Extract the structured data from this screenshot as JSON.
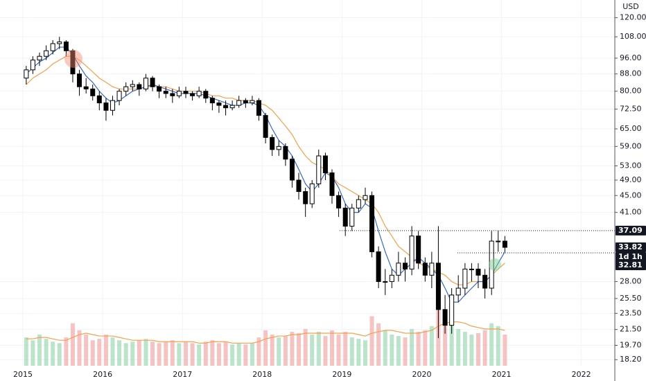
{
  "chart_data": {
    "type": "candlestick",
    "y_unit": "USD",
    "log_scale": true,
    "grid": true,
    "xlim": [
      2014.713,
      2022.42
    ],
    "ylim": [
      17.6,
      132.3
    ],
    "xticks": [
      2015,
      2016,
      2017,
      2018,
      2019,
      2020,
      2021,
      2022
    ],
    "yticks": [
      {
        "value": 120,
        "label": "120.00"
      },
      {
        "value": 108,
        "label": "108.00"
      },
      {
        "value": 96,
        "label": "96.00"
      },
      {
        "value": 88,
        "label": "88.00"
      },
      {
        "value": 80,
        "label": "80.00"
      },
      {
        "value": 72.5,
        "label": "72.50"
      },
      {
        "value": 65,
        "label": "65.00"
      },
      {
        "value": 59,
        "label": "59.00"
      },
      {
        "value": 53,
        "label": "53.00"
      },
      {
        "value": 49,
        "label": "49.00"
      },
      {
        "value": 45,
        "label": "45.00"
      },
      {
        "value": 41,
        "label": "41.00"
      },
      {
        "value": 28,
        "label": "28.00"
      },
      {
        "value": 25.5,
        "label": "25.50"
      },
      {
        "value": 23.5,
        "label": "23.50"
      },
      {
        "value": 21.5,
        "label": "21.50"
      },
      {
        "value": 19.7,
        "label": "19.70"
      },
      {
        "value": 18.2,
        "label": "18.20"
      }
    ],
    "x": [
      2015.042,
      2015.125,
      2015.208,
      2015.292,
      2015.375,
      2015.458,
      2015.542,
      2015.625,
      2015.708,
      2015.792,
      2015.875,
      2015.958,
      2016.042,
      2016.125,
      2016.208,
      2016.292,
      2016.375,
      2016.458,
      2016.542,
      2016.625,
      2016.708,
      2016.792,
      2016.875,
      2016.958,
      2017.042,
      2017.125,
      2017.208,
      2017.292,
      2017.375,
      2017.458,
      2017.542,
      2017.625,
      2017.708,
      2017.792,
      2017.875,
      2017.958,
      2018.042,
      2018.125,
      2018.208,
      2018.292,
      2018.375,
      2018.458,
      2018.542,
      2018.625,
      2018.708,
      2018.792,
      2018.875,
      2018.958,
      2019.042,
      2019.125,
      2019.208,
      2019.292,
      2019.375,
      2019.458,
      2019.542,
      2019.625,
      2019.708,
      2019.792,
      2019.875,
      2019.958,
      2020.042,
      2020.125,
      2020.208,
      2020.292,
      2020.375,
      2020.458,
      2020.542,
      2020.625,
      2020.708,
      2020.792,
      2020.875,
      2020.958,
      2021.042
    ],
    "open": [
      86,
      90,
      95,
      97,
      100,
      104,
      105,
      100,
      88,
      82,
      81,
      78,
      75,
      72,
      76,
      80,
      82,
      83,
      81,
      86,
      82,
      80,
      79,
      78,
      80,
      79,
      78,
      80,
      77,
      75,
      74,
      73,
      74,
      76,
      75,
      76,
      70,
      62,
      58,
      59,
      55,
      49,
      46,
      43,
      48,
      56,
      51,
      45,
      42,
      38,
      42,
      44,
      45,
      33,
      28,
      28,
      29,
      31,
      30,
      36,
      31,
      29,
      31,
      24,
      22,
      26,
      27,
      30,
      30,
      29,
      27,
      35,
      35
    ],
    "high": [
      92,
      97,
      99,
      103,
      106,
      108,
      106,
      101,
      90,
      86,
      83,
      80,
      77,
      78,
      81,
      84,
      85,
      84,
      88,
      87,
      83,
      82,
      81,
      82,
      82,
      80,
      82,
      81,
      78,
      76,
      76,
      76,
      78,
      77,
      78,
      77,
      71,
      63,
      61,
      60,
      56,
      51,
      47,
      49,
      58,
      57,
      52,
      46,
      43,
      43,
      45,
      47,
      46,
      34,
      30,
      30,
      33,
      32,
      38,
      37,
      32,
      33,
      38,
      26,
      27,
      29,
      31,
      31,
      31,
      30,
      37,
      37.09,
      36
    ],
    "low": [
      83,
      88,
      92,
      95,
      98,
      101,
      97,
      84,
      78,
      79,
      76,
      72,
      68,
      70,
      74,
      78,
      80,
      78,
      80,
      80,
      77,
      77,
      75,
      77,
      77,
      76,
      77,
      75,
      72,
      71,
      70,
      72,
      73,
      73,
      74,
      68,
      60,
      56,
      56,
      53,
      47,
      44,
      40,
      42,
      47,
      49,
      43,
      40,
      36,
      37,
      41,
      43,
      32,
      27,
      26,
      27,
      28,
      28,
      29,
      30,
      28,
      27,
      20.5,
      21,
      21,
      25,
      26,
      28,
      27,
      25.5,
      26,
      33,
      33
    ],
    "close": [
      90,
      95,
      97,
      100,
      104,
      105,
      100,
      88,
      82,
      81,
      78,
      75,
      72,
      76,
      80,
      82,
      83,
      81,
      86,
      82,
      80,
      79,
      78,
      80,
      79,
      78,
      80,
      77,
      75,
      74,
      73,
      74,
      76,
      75,
      76,
      70,
      62,
      58,
      59,
      55,
      49,
      46,
      43,
      48,
      56,
      51,
      45,
      42,
      38,
      42,
      44,
      45,
      33,
      28,
      28,
      29,
      31,
      30,
      36,
      31,
      29,
      31,
      24,
      22,
      26,
      27,
      30,
      30,
      29,
      27,
      35,
      35,
      33.82
    ],
    "up_color": "#ffffff",
    "down_color": "#000000",
    "moving_averages": [
      {
        "color": "#f5a04a",
        "values": [
          83,
          86,
          88,
          90,
          93,
          95,
          97,
          97,
          95,
          92,
          89,
          86,
          84,
          82,
          81,
          81,
          81,
          81,
          82,
          82,
          82,
          82,
          81,
          80,
          80,
          80,
          80,
          79,
          78,
          78,
          77,
          77,
          76,
          76,
          76,
          75,
          74,
          72,
          69,
          66,
          63,
          59,
          56,
          54,
          53,
          52,
          50,
          48,
          47,
          46,
          45,
          44,
          43,
          41,
          38,
          36,
          34,
          33,
          32,
          31,
          30.5,
          30,
          29.5,
          29,
          28,
          27.5,
          27.5,
          28,
          28,
          28,
          29,
          30,
          31
        ]
      },
      {
        "color": "#3366cc",
        "values": [
          88,
          91,
          94,
          96,
          99,
          102,
          102,
          98,
          92,
          87,
          84,
          80,
          77,
          75,
          76,
          78,
          80,
          81,
          82,
          83,
          82,
          81,
          80,
          79,
          79,
          79,
          79,
          78,
          77,
          76,
          75,
          74,
          74,
          75,
          75,
          74,
          70,
          65,
          61,
          59,
          56,
          52,
          48,
          46,
          48,
          51,
          50,
          47,
          43,
          41,
          41,
          43,
          42,
          37,
          33,
          30,
          29,
          30,
          31,
          32,
          31,
          30,
          29,
          27,
          25,
          25,
          26,
          27,
          28,
          28,
          29,
          31,
          33
        ]
      }
    ],
    "volume": {
      "up_color": "#9fd8b4",
      "down_color": "#f2a9a9",
      "values": [
        20,
        18,
        22,
        19,
        17,
        16,
        20,
        30,
        25,
        22,
        18,
        19,
        22,
        20,
        18,
        16,
        17,
        18,
        19,
        17,
        16,
        17,
        18,
        16,
        17,
        16,
        15,
        17,
        18,
        16,
        17,
        15,
        16,
        15,
        16,
        20,
        25,
        22,
        20,
        21,
        24,
        23,
        26,
        22,
        24,
        21,
        25,
        22,
        24,
        20,
        19,
        18,
        35,
        30,
        25,
        22,
        21,
        20,
        26,
        24,
        25,
        28,
        45,
        38,
        30,
        26,
        24,
        22,
        23,
        25,
        30,
        28,
        22
      ],
      "average": {
        "color": "#f5a04a",
        "values": [
          19,
          19,
          20,
          20,
          19,
          18,
          18,
          20,
          22,
          23,
          22,
          21,
          21,
          21,
          20,
          19,
          18,
          18,
          18,
          18,
          17,
          17,
          17,
          17,
          17,
          17,
          16,
          16,
          17,
          17,
          17,
          16,
          16,
          16,
          16,
          17,
          19,
          20,
          21,
          21,
          22,
          22,
          23,
          23,
          23,
          23,
          23,
          23,
          23,
          23,
          22,
          21,
          23,
          24,
          25,
          25,
          24,
          23,
          23,
          23,
          24,
          25,
          28,
          30,
          31,
          31,
          30,
          28,
          27,
          26,
          26,
          26,
          25
        ]
      }
    },
    "price_labels": [
      {
        "value": 37.09,
        "label": "37.09"
      },
      {
        "value": 33.82,
        "label": "33.82"
      },
      {
        "value": 32.81,
        "label": "32.81"
      }
    ],
    "countdown": "1d 1h"
  }
}
